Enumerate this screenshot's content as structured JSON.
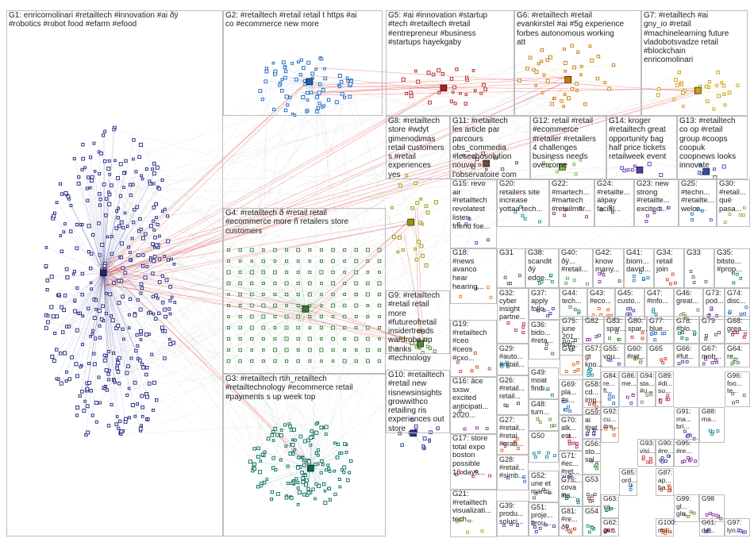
{
  "groups": [
    {
      "id": "G1",
      "label": "G1: enricomolinari #retailtech #innovation #ai ðÿ\n#robotics #robot food #efarm #efood",
      "color": "#1a237e"
    },
    {
      "id": "G2",
      "label": "G2: #retailtech #retail retail t https #ai\nco #ecommerce new more",
      "color": "#1565c0"
    },
    {
      "id": "G5",
      "label": "G5: #ai #innovation #startup\n#tech #retailtech #retail\n#entrepreneur #business\n#startups hayekgaby",
      "color": "#b71c1c"
    },
    {
      "id": "G6",
      "label": "G6: #retailtech #retail\nevankirstel #ai #5g experience\nforbes autonomous working\natt",
      "color": "#c77700"
    },
    {
      "id": "G7",
      "label": "G7: #retailtech #ai\ngny_io #retail\n#machinelearning future\nvladobotsvadze retail\n#blockchain\nenricomolinari",
      "color": "#c9a000"
    },
    {
      "id": "G8",
      "label": "G8: #retailtech\nstore #wdyt\ngimenodimas\nretail customers\ns #retail\nexperiences\nyes",
      "color": "#8a9a00"
    },
    {
      "id": "G11",
      "label": "G11: #retailtech\nles article par\nparcours\nobs_commedia\n#lesechosolution\nnouvel\nl'observatoire com",
      "color": "#6d4c41"
    },
    {
      "id": "G12",
      "label": "G12: retail #retail\n#ecommerce\n#retailer #retailers\n4 challenges\nbusiness needs\novercome",
      "color": "#7cb342"
    },
    {
      "id": "G14",
      "label": "G14: kroger\n#retailtech great\nopportunity bag\nhalf price tickets\nretailweek event",
      "color": "#5e35b1"
    },
    {
      "id": "G13",
      "label": "G13: #retailtech\nco op #retail\ngroup #coops\ncoopuk\ncoopnews looks\ninnovate",
      "color": "#3949ab"
    },
    {
      "id": "G4",
      "label": "G4: #retailtech ð #retail retail\n#ecommerce more ñ retailers store\ncustomers",
      "color": "#2e7d32"
    },
    {
      "id": "G9",
      "label": "G9: #retailtech\n#retail retail\nmore\n#futureofretail\ninsidertrends\nwardrobe up\nthanks\n#technology",
      "color": "#558b2f"
    },
    {
      "id": "G3",
      "label": "G3: #retailtech rtih_retailtech\n#retailtechnology #ecommerce retail\n#payments s up week top",
      "color": "#00695c"
    },
    {
      "id": "G10",
      "label": "G10: #retailtech\n#retail new\nrisnewsinsights\ngrowwithco\nretailing ris\nexperiences out\nstore",
      "color": "#283593"
    },
    {
      "id": "G15",
      "label": "G15: revo\nair\n#retailtech\nrevolatest\nlisten\nfriend foe...",
      "color": "#6a1b9a"
    },
    {
      "id": "G20",
      "label": "G20:\nretailers site\nincrease\nyottaa tech...",
      "color": "#00838f"
    },
    {
      "id": "G22",
      "label": "G22:\n#martech...\n#martech\n#retailmar...",
      "color": "#ad1457"
    },
    {
      "id": "G24",
      "label": "G24:\n#retailte...\nalipay\nfacial...",
      "color": "#4e342e"
    },
    {
      "id": "G23",
      "label": "G23: new\nstrong\n#retailte...\nexcited...",
      "color": "#6a1b9a"
    },
    {
      "id": "G25",
      "label": "G25:\n#techn...\n#retailte...\nwelco...",
      "color": "#1565c0"
    },
    {
      "id": "G30",
      "label": "G30:\n#retail...\nqué\npasa...",
      "color": "#9e9d24"
    },
    {
      "id": "G18",
      "label": "G18:\n#news\navanco\nhear\nhearing...",
      "color": "#ef6c00"
    },
    {
      "id": "G31",
      "label": "G31",
      "color": "#5d4037"
    },
    {
      "id": "G38",
      "label": "G38:\nscandit ðÿ\nedge...",
      "color": "#00897b"
    },
    {
      "id": "G40",
      "label": "G40:\nðÿ...\n#retail...",
      "color": "#43a047"
    },
    {
      "id": "G42",
      "label": "G42:\nknow\nmany...",
      "color": "#7b1fa2"
    },
    {
      "id": "G41",
      "label": "G41:\nbiom...\ndavid...",
      "color": "#0277bd"
    },
    {
      "id": "G34",
      "label": "G34:\nretail\njoin",
      "color": "#c62828"
    },
    {
      "id": "G33",
      "label": "G33",
      "color": "#6d4c41"
    },
    {
      "id": "G35",
      "label": "G35:\nbitsto...\n#prop...",
      "color": "#00796b"
    },
    {
      "id": "G32",
      "label": "G32:\ncyber\ninsight\npartne...",
      "color": "#ad1457"
    },
    {
      "id": "G37",
      "label": "G37:\napply\nfollo...",
      "color": "#283593"
    },
    {
      "id": "G44",
      "label": "G44:\ntech...",
      "color": "#2e7d32"
    },
    {
      "id": "G43",
      "label": "G43:\n#eco...",
      "color": "#e65100"
    },
    {
      "id": "G45",
      "label": "G45:\ncusto...",
      "color": "#4527a0"
    },
    {
      "id": "G47",
      "label": "G47:\n#info...",
      "color": "#00838f"
    },
    {
      "id": "G46",
      "label": "G46:\ngreat...",
      "color": "#558b2f"
    },
    {
      "id": "G73",
      "label": "G73:\npod...",
      "color": "#6a1b9a"
    },
    {
      "id": "G74",
      "label": "G74:\ndisc...",
      "color": "#1565c0"
    },
    {
      "id": "G19",
      "label": "G19:\n#retailtech\n#ceo\n#ceos\n#cxo...",
      "color": "#bf360c"
    },
    {
      "id": "G29",
      "label": "G29:\n#auto...\n#retail...",
      "color": "#0277bd"
    },
    {
      "id": "G36",
      "label": "G36:\nbido...\n#reta...",
      "color": "#6d4c41"
    },
    {
      "id": "G75",
      "label": "G75:\njune\n201...\ntop...",
      "color": "#455a64"
    },
    {
      "id": "G82",
      "label": "G82",
      "color": "#7b1fa2"
    },
    {
      "id": "G83",
      "label": "G83:\nspar...",
      "color": "#2e7d32"
    },
    {
      "id": "G80",
      "label": "G80:\nspar...",
      "color": "#c62828"
    },
    {
      "id": "G77",
      "label": "G77:\nblue...",
      "color": "#1565c0"
    },
    {
      "id": "G78",
      "label": "G78:\n#blo...",
      "color": "#00695c"
    },
    {
      "id": "G79",
      "label": "G79",
      "color": "#5d4037"
    },
    {
      "id": "G68",
      "label": "G68:\ngrea...",
      "color": "#ad1457"
    },
    {
      "id": "G72",
      "label": "G72",
      "color": "#e65100"
    },
    {
      "id": "G57",
      "label": "G57:\ngt\nkno...",
      "color": "#00838f"
    },
    {
      "id": "G55",
      "label": "G55:\nvou...",
      "color": "#4527a0"
    },
    {
      "id": "G60",
      "label": "G60:\n#ret...",
      "color": "#558b2f"
    },
    {
      "id": "G65",
      "label": "G65",
      "color": "#c62828"
    },
    {
      "id": "G66",
      "label": "G66:\n#fut...",
      "color": "#283593"
    },
    {
      "id": "G67",
      "label": "G67:\nmob...",
      "color": "#6a1b9a"
    },
    {
      "id": "G64",
      "label": "G64:\nre...",
      "color": "#2e7d32"
    },
    {
      "id": "G26",
      "label": "G26:\n#retail...\nretail...",
      "color": "#4e342e"
    },
    {
      "id": "G49",
      "label": "G49:\nmoat\nfind...",
      "color": "#00796b"
    },
    {
      "id": "G69",
      "label": "G69:\npla...\n#s...",
      "color": "#1565c0"
    },
    {
      "id": "G58",
      "label": "G58:\ncd...\nimp...",
      "color": "#bf360c"
    },
    {
      "id": "G16",
      "label": "G16: âce\nsxsw\nexcited\nanticipati...\n2020...",
      "color": "#7b1fa2"
    },
    {
      "id": "G48",
      "label": "G48:\nturn...",
      "color": "#558b2f"
    },
    {
      "id": "G70",
      "label": "G70:\nalk...\nest...",
      "color": "#ad1457"
    },
    {
      "id": "G59",
      "label": "G59:\nai\n#ret...",
      "color": "#283593"
    },
    {
      "id": "G27",
      "label": "G27:\n#retail...\n#retai\n#grab...",
      "color": "#e65100"
    },
    {
      "id": "G50",
      "label": "G50",
      "color": "#00838f"
    },
    {
      "id": "G71",
      "label": "G71:\n#ec...\n#ret...",
      "color": "#4527a0"
    },
    {
      "id": "G56",
      "label": "G56:\nsto...\nsol...",
      "color": "#2e7d32"
    },
    {
      "id": "G17",
      "label": "G17: store\ntotal expo\nboston\npossible\n16 days...",
      "color": "#c62828"
    },
    {
      "id": "G28",
      "label": "G28:\n#retail...\n#simb...",
      "color": "#1565c0"
    },
    {
      "id": "G52",
      "label": "G52:\nune et\nmarc...",
      "color": "#6d4c41"
    },
    {
      "id": "G76",
      "label": "G76:\ncova\nins...",
      "color": "#00695c"
    },
    {
      "id": "G53",
      "label": "G53",
      "color": "#5d4037"
    },
    {
      "id": "G21",
      "label": "G21:\n#retailtech\nvisualizati...\ntech...",
      "color": "#9e9d24"
    },
    {
      "id": "G39",
      "label": "G39:\nprodu...\nsoluci...",
      "color": "#6a1b9a"
    },
    {
      "id": "G51",
      "label": "G51:\nproje...\nbrou...",
      "color": "#283593"
    },
    {
      "id": "G81",
      "label": "G81:\n#re...\nðÿ...",
      "color": "#bf360c"
    },
    {
      "id": "G54",
      "label": "G54",
      "color": "#00796b"
    },
    {
      "id": "G84",
      "label": "G84:\nre...\nfi...",
      "color": "#1565c0"
    },
    {
      "id": "G86",
      "label": "G86:\nme...",
      "color": "#7b1fa2"
    },
    {
      "id": "G94",
      "label": "G94:\nsta...\n#u...",
      "color": "#558b2f"
    },
    {
      "id": "G89",
      "label": "G89:\n#di...\nsu...",
      "color": "#ad1457"
    },
    {
      "id": "G96",
      "label": "G96:\nfoo...\nte...",
      "color": "#2e7d32"
    },
    {
      "id": "G92",
      "label": "G92:\ncu...\n#re...",
      "color": "#e65100"
    },
    {
      "id": "G91",
      "label": "G91:\nma...\nbri...",
      "color": "#4527a0"
    },
    {
      "id": "G88",
      "label": "G88:\nma...",
      "color": "#00838f"
    },
    {
      "id": "G93",
      "label": "G93:\nvisi...",
      "color": "#c62828"
    },
    {
      "id": "G90",
      "label": "G90:\n#re...",
      "color": "#283593"
    },
    {
      "id": "G95",
      "label": "G95:\n#re...",
      "color": "#6a1b9a"
    },
    {
      "id": "G85",
      "label": "G85:\nord...",
      "color": "#1565c0"
    },
    {
      "id": "G87",
      "label": "G87:\nap...\nba...",
      "color": "#bf360c"
    },
    {
      "id": "G63",
      "label": "G63:\nva...",
      "color": "#00695c"
    },
    {
      "id": "G99",
      "label": "G99:\ngl...\nglo...",
      "color": "#558b2f"
    },
    {
      "id": "G98",
      "label": "G98",
      "color": "#7b1fa2"
    },
    {
      "id": "G62",
      "label": "G62:\nge...",
      "color": "#ad1457"
    },
    {
      "id": "G100",
      "label": "G100:\nma...",
      "color": "#e65100"
    },
    {
      "id": "G61",
      "label": "G61:\nde...",
      "color": "#283593"
    },
    {
      "id": "G97",
      "label": "G97:\nlyn...",
      "color": "#4527a0"
    }
  ]
}
